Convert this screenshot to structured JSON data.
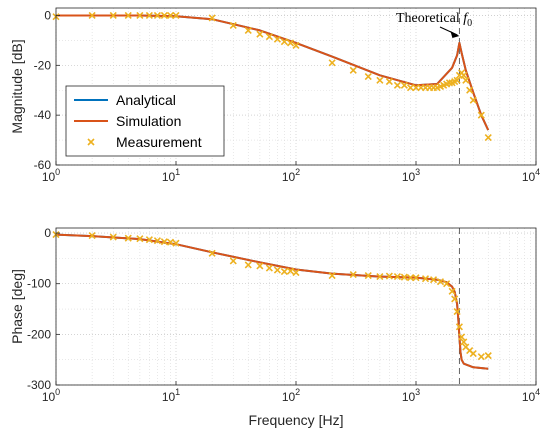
{
  "chart_data": [
    {
      "type": "line",
      "panel": "magnitude",
      "ylabel": "Magnitude [dB]",
      "xlabel": "",
      "xscale": "log",
      "xlim": [
        1,
        10000
      ],
      "ylim": [
        -60,
        3
      ],
      "yticks": [
        0,
        -20,
        -40,
        -60
      ],
      "xticks": [
        1,
        10,
        100,
        1000,
        10000
      ],
      "grid": true,
      "legend_position": "left",
      "annotation": {
        "text": "Theoretical",
        "math": "f",
        "sub": "0",
        "x": 2300
      },
      "series": [
        {
          "name": "Analytical",
          "color": "#0072BD",
          "style": "line",
          "x": [
            1,
            2,
            5,
            10,
            20,
            50,
            100,
            200,
            500,
            1000,
            1500,
            2000,
            2200,
            2300,
            2400,
            2600,
            3000,
            3500,
            4000
          ],
          "y": [
            0,
            0,
            0,
            -0.3,
            -1.5,
            -6,
            -11,
            -16.5,
            -24,
            -28,
            -27.5,
            -21,
            -16,
            -11,
            -15,
            -22,
            -31,
            -40,
            -46
          ]
        },
        {
          "name": "Simulation",
          "color": "#D95319",
          "style": "line",
          "x": [
            1,
            2,
            5,
            10,
            20,
            50,
            100,
            200,
            500,
            1000,
            1500,
            2000,
            2200,
            2300,
            2400,
            2600,
            3000,
            3500,
            4000
          ],
          "y": [
            0,
            0,
            0,
            -0.3,
            -1.5,
            -6,
            -11,
            -16.5,
            -24,
            -28,
            -27.5,
            -21,
            -16,
            -11,
            -15,
            -22,
            -31,
            -40,
            -46
          ]
        },
        {
          "name": "Measurement",
          "color": "#EDB120",
          "style": "marker",
          "x": [
            1,
            2,
            3,
            4,
            5,
            6,
            7,
            8,
            9,
            10,
            20,
            30,
            40,
            50,
            60,
            70,
            80,
            90,
            100,
            200,
            300,
            400,
            500,
            600,
            700,
            800,
            900,
            1000,
            1100,
            1200,
            1300,
            1400,
            1500,
            1600,
            1700,
            1800,
            1900,
            2000,
            2100,
            2200,
            2300,
            2400,
            2500,
            2600,
            2800,
            3000,
            3500,
            4000
          ],
          "y": [
            -0.5,
            0,
            0,
            0,
            0,
            0,
            0,
            0,
            0,
            0,
            -1,
            -4,
            -6,
            -7.5,
            -8.5,
            -9.5,
            -10.5,
            -11,
            -12,
            -19,
            -22,
            -24.5,
            -26,
            -26.5,
            -28,
            -28,
            -29,
            -29,
            -29,
            -29,
            -29,
            -29,
            -29,
            -28.5,
            -28,
            -27.5,
            -27,
            -27,
            -26.5,
            -26,
            -24,
            -23,
            -24,
            -26,
            -30,
            -34,
            -40,
            -49
          ]
        }
      ]
    },
    {
      "type": "line",
      "panel": "phase",
      "ylabel": "Phase [deg]",
      "xlabel": "Frequency [Hz]",
      "xscale": "log",
      "xlim": [
        1,
        10000
      ],
      "ylim": [
        -300,
        10
      ],
      "yticks": [
        0,
        -100,
        -200,
        -300
      ],
      "xticks": [
        1,
        10,
        100,
        1000,
        10000
      ],
      "grid": true,
      "annotation_x": 2300,
      "series": [
        {
          "name": "Analytical",
          "color": "#0072BD",
          "style": "line",
          "x": [
            1,
            2,
            5,
            10,
            20,
            50,
            100,
            200,
            500,
            1000,
            1500,
            1800,
            2000,
            2100,
            2200,
            2250,
            2300,
            2350,
            2400,
            2500,
            3000,
            4000
          ],
          "y": [
            -3,
            -6,
            -12,
            -22,
            -38,
            -58,
            -72,
            -80,
            -86,
            -88,
            -92,
            -97,
            -106,
            -116,
            -140,
            -170,
            -205,
            -235,
            -250,
            -258,
            -265,
            -268
          ]
        },
        {
          "name": "Simulation",
          "color": "#D95319",
          "style": "line",
          "x": [
            1,
            2,
            5,
            10,
            20,
            50,
            100,
            200,
            500,
            1000,
            1500,
            1800,
            2000,
            2100,
            2200,
            2250,
            2300,
            2350,
            2400,
            2500,
            3000,
            4000
          ],
          "y": [
            -3,
            -6,
            -12,
            -22,
            -38,
            -58,
            -72,
            -80,
            -86,
            -88,
            -92,
            -97,
            -106,
            -116,
            -140,
            -170,
            -205,
            -235,
            -250,
            -258,
            -265,
            -268
          ]
        },
        {
          "name": "Measurement",
          "color": "#EDB120",
          "style": "marker",
          "x": [
            1,
            2,
            3,
            4,
            5,
            6,
            7,
            8,
            9,
            10,
            20,
            30,
            40,
            50,
            60,
            70,
            80,
            90,
            100,
            200,
            300,
            400,
            500,
            600,
            700,
            800,
            900,
            1000,
            1200,
            1400,
            1600,
            1800,
            2000,
            2100,
            2200,
            2300,
            2400,
            2500,
            2600,
            2800,
            3000,
            3500,
            4000
          ],
          "y": [
            -3,
            -5,
            -8,
            -10,
            -11,
            -13,
            -15,
            -17,
            -18,
            -20,
            -40,
            -55,
            -63,
            -65,
            -69,
            -73,
            -76,
            -75,
            -78,
            -84,
            -82,
            -84,
            -86,
            -85,
            -86,
            -87,
            -88,
            -88,
            -90,
            -92,
            -96,
            -100,
            -115,
            -130,
            -155,
            -185,
            -205,
            -215,
            -225,
            -232,
            -238,
            -244,
            -242
          ]
        }
      ]
    }
  ]
}
